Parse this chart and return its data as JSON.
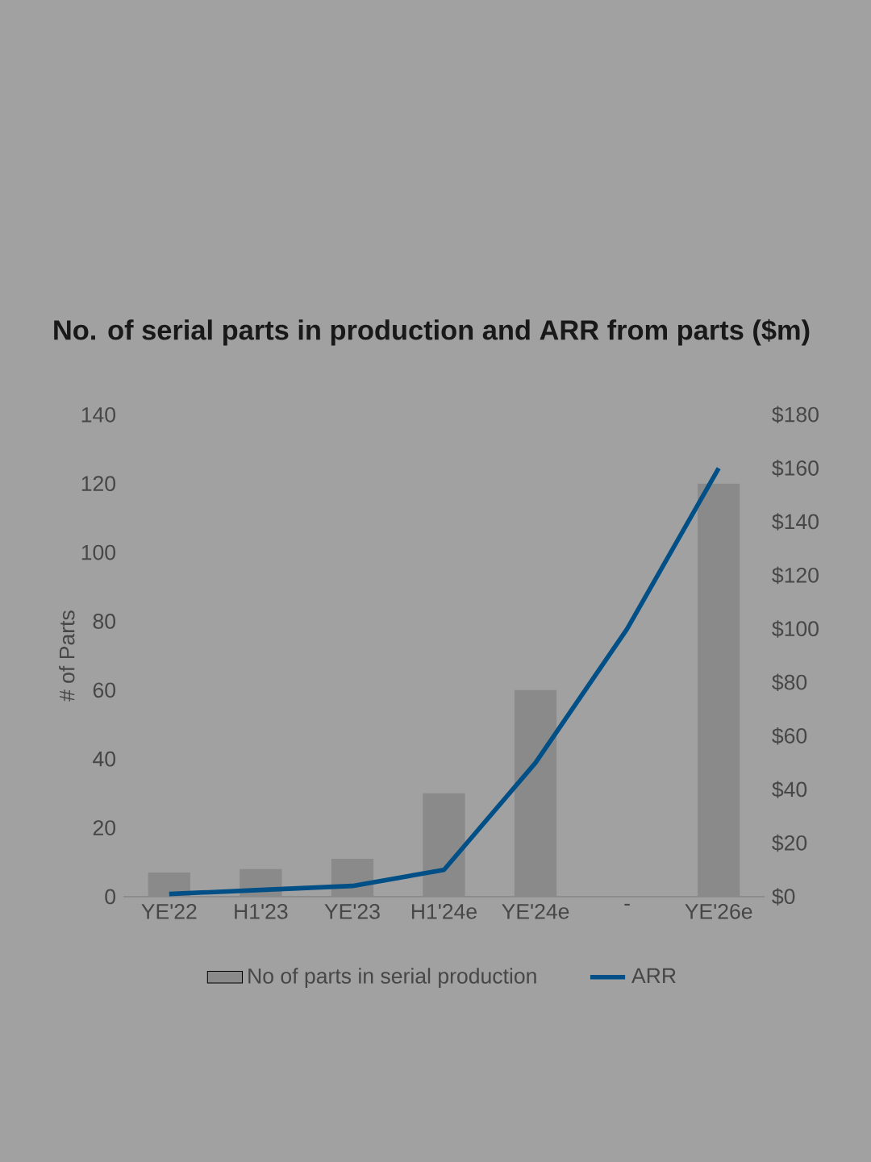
{
  "chart_data": {
    "type": "bar",
    "title": "No. of serial parts in production and ARR from parts ($m)",
    "categories": [
      "YE'22",
      "H1'23",
      "YE'23",
      "H1'24e",
      "YE'24e",
      "-",
      "YE'26e"
    ],
    "series": [
      {
        "name": "No of parts in serial production",
        "color": "#8a8a8a",
        "values": [
          7,
          8,
          11,
          30,
          60,
          null,
          120
        ]
      },
      {
        "name": "ARR",
        "type": "line",
        "color": "#004f86",
        "axis": "y2",
        "values": [
          1,
          2.5,
          4,
          10,
          50,
          100,
          160
        ]
      }
    ],
    "ylabel": "# of Parts",
    "ylim": [
      0,
      140
    ],
    "yticks": [
      0,
      20,
      40,
      60,
      80,
      100,
      120,
      140
    ],
    "y2lim": [
      0,
      180
    ],
    "y2ticks": [
      {
        "value": 0,
        "label": "$0"
      },
      {
        "value": 20,
        "label": "$20"
      },
      {
        "value": 40,
        "label": "$40"
      },
      {
        "value": 60,
        "label": "$60"
      },
      {
        "value": 80,
        "label": "$80"
      },
      {
        "value": 100,
        "label": "$100"
      },
      {
        "value": 120,
        "label": "$120"
      },
      {
        "value": 140,
        "label": "$140"
      },
      {
        "value": 160,
        "label": "$160"
      },
      {
        "value": 180,
        "label": "$180"
      }
    ],
    "legend": "bottom",
    "grid": false
  }
}
